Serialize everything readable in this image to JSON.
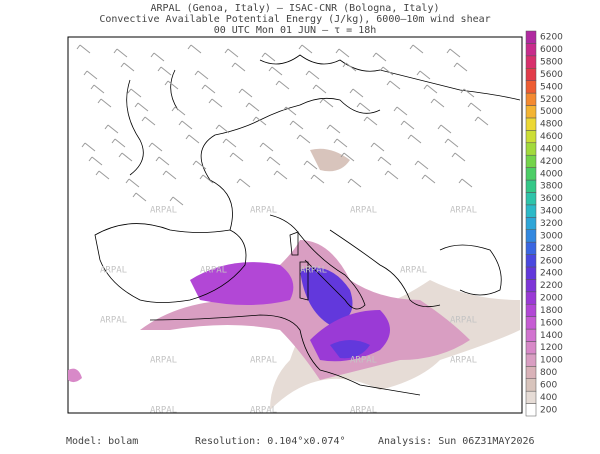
{
  "header": {
    "lines": [
      "ARPAL (Genoa, Italy)  –  ISAC-CNR (Bologna, Italy)",
      "Convective Available Potential Energy (J/kg), 6000–10m wind shear",
      "00 UTC Mon 01 JUN  –  τ = 18h"
    ]
  },
  "watermark": "ARPAL",
  "colorbar": {
    "levels": [
      200,
      400,
      600,
      800,
      1000,
      1200,
      1400,
      1600,
      1800,
      2000,
      2200,
      2400,
      2600,
      2800,
      3000,
      3200,
      3400,
      3600,
      3800,
      4000,
      4200,
      4400,
      4600,
      4800,
      5000,
      5200,
      5400,
      5600,
      5800,
      6000,
      6200
    ],
    "colors": [
      "#ffffff",
      "#e6dcd6",
      "#d8c4bc",
      "#d9b2b8",
      "#d99ec2",
      "#d889c8",
      "#d274d0",
      "#c65cd4",
      "#b247d6",
      "#9a3ad6",
      "#7e36d8",
      "#6238dc",
      "#4a48e0",
      "#3a66e2",
      "#3288e0",
      "#2ea6d8",
      "#2cbac8",
      "#2ec4aa",
      "#34c888",
      "#4cce66",
      "#74d44a",
      "#a2da3c",
      "#ccde36",
      "#ecd834",
      "#f4b432",
      "#f48a30",
      "#ee5c32",
      "#e23c4a",
      "#d8306c",
      "#c82c8c",
      "#b02aa0"
    ]
  },
  "footer": {
    "model": "Model: bolam",
    "resolution": "Resolution: 0.104°x0.074°",
    "analysis": "Analysis: Sun 06Z31MAY2026"
  }
}
